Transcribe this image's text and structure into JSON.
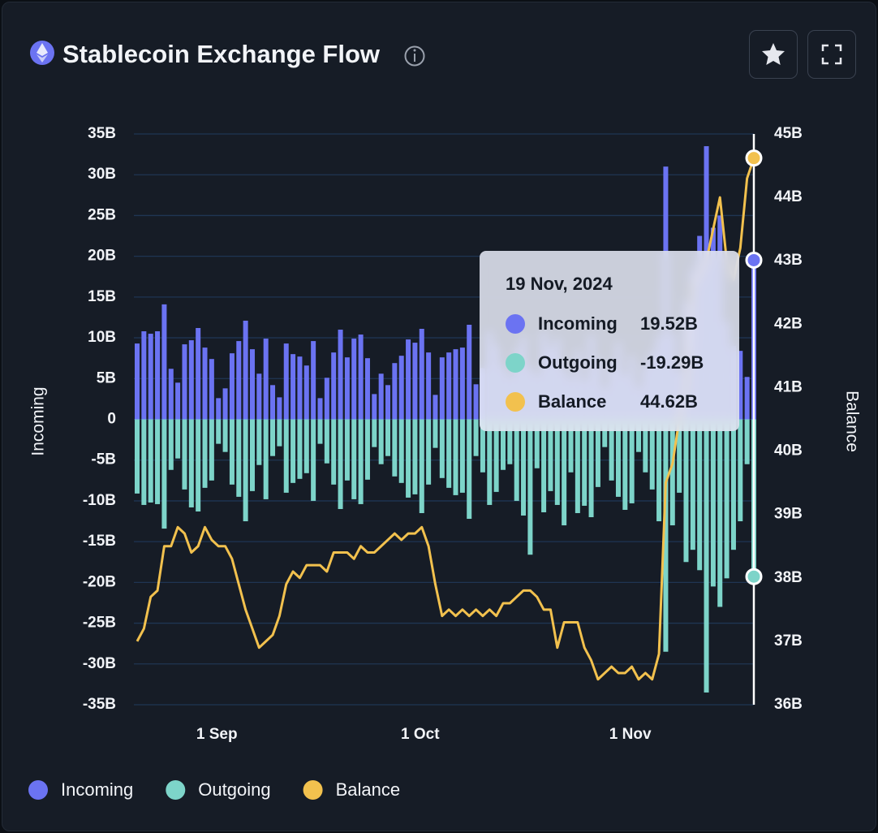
{
  "chart_data": {
    "type": "bar",
    "title": "Stablecoin Exchange Flow",
    "y_label": "Incoming",
    "y2_label": "Balance",
    "x": [
      "2024-08-20",
      "2024-08-21",
      "2024-08-22",
      "2024-08-23",
      "2024-08-24",
      "2024-08-25",
      "2024-08-26",
      "2024-08-27",
      "2024-08-28",
      "2024-08-29",
      "2024-08-30",
      "2024-08-31",
      "2024-09-01",
      "2024-09-02",
      "2024-09-03",
      "2024-09-04",
      "2024-09-05",
      "2024-09-06",
      "2024-09-07",
      "2024-09-08",
      "2024-09-09",
      "2024-09-10",
      "2024-09-11",
      "2024-09-12",
      "2024-09-13",
      "2024-09-14",
      "2024-09-15",
      "2024-09-16",
      "2024-09-17",
      "2024-09-18",
      "2024-09-19",
      "2024-09-20",
      "2024-09-21",
      "2024-09-22",
      "2024-09-23",
      "2024-09-24",
      "2024-09-25",
      "2024-09-26",
      "2024-09-27",
      "2024-09-28",
      "2024-09-29",
      "2024-09-30",
      "2024-10-01",
      "2024-10-02",
      "2024-10-03",
      "2024-10-04",
      "2024-10-05",
      "2024-10-06",
      "2024-10-07",
      "2024-10-08",
      "2024-10-09",
      "2024-10-10",
      "2024-10-11",
      "2024-10-12",
      "2024-10-13",
      "2024-10-14",
      "2024-10-15",
      "2024-10-16",
      "2024-10-17",
      "2024-10-18",
      "2024-10-19",
      "2024-10-20",
      "2024-10-21",
      "2024-10-22",
      "2024-10-23",
      "2024-10-24",
      "2024-10-25",
      "2024-10-26",
      "2024-10-27",
      "2024-10-28",
      "2024-10-29",
      "2024-10-30",
      "2024-10-31",
      "2024-11-01",
      "2024-11-02",
      "2024-11-03",
      "2024-11-04",
      "2024-11-05",
      "2024-11-06",
      "2024-11-07",
      "2024-11-08",
      "2024-11-09",
      "2024-11-10",
      "2024-11-11",
      "2024-11-12",
      "2024-11-13",
      "2024-11-14",
      "2024-11-15",
      "2024-11-16",
      "2024-11-17",
      "2024-11-18",
      "2024-11-19"
    ],
    "series": [
      {
        "name": "Incoming",
        "type": "bar",
        "color": "#6b73f2",
        "values": [
          9.3,
          10.8,
          10.5,
          10.8,
          14.1,
          6.2,
          4.5,
          9.2,
          9.7,
          11.2,
          8.8,
          7.4,
          2.6,
          3.8,
          8.1,
          9.6,
          12.1,
          8.6,
          5.6,
          9.9,
          4.2,
          2.7,
          9.3,
          8.0,
          7.7,
          6.6,
          9.6,
          2.6,
          5.1,
          8.2,
          11.0,
          7.6,
          9.9,
          10.4,
          7.5,
          3.1,
          5.6,
          4.2,
          6.9,
          7.8,
          9.8,
          9.4,
          11.1,
          8.2,
          3.0,
          7.6,
          8.2,
          8.6,
          8.8,
          11.6,
          4.3,
          6.3,
          10.8,
          9.1,
          6.6,
          5.3,
          8.6,
          10.2,
          6.4,
          5.5,
          10.7,
          8.8,
          9.9,
          6.2,
          5.0,
          8.5,
          4.8,
          10.3,
          7.3,
          3.9,
          6.8,
          9.4,
          5.5,
          7.8,
          4.0,
          6.6,
          8.3,
          10.2,
          31.0,
          10.5,
          6.0,
          14.5,
          18.5,
          22.5,
          33.5,
          23.5,
          25.0,
          12.0,
          9.0,
          8.4,
          5.2,
          19.52
        ]
      },
      {
        "name": "Outgoing",
        "type": "bar",
        "color": "#7dd4c9",
        "values": [
          -9.1,
          -10.5,
          -10.2,
          -10.4,
          -13.4,
          -6.2,
          -4.8,
          -8.6,
          -10.8,
          -11.3,
          -8.4,
          -7.5,
          -3.0,
          -4.0,
          -8.0,
          -9.5,
          -12.5,
          -8.8,
          -5.6,
          -9.8,
          -4.5,
          -3.3,
          -9.0,
          -7.8,
          -7.3,
          -6.6,
          -10.0,
          -3.0,
          -5.4,
          -8.0,
          -11.0,
          -7.5,
          -9.8,
          -10.4,
          -7.4,
          -3.4,
          -5.5,
          -4.5,
          -7.0,
          -7.8,
          -9.6,
          -9.2,
          -11.5,
          -8.0,
          -3.5,
          -7.2,
          -8.4,
          -9.3,
          -9.0,
          -12.2,
          -4.5,
          -6.5,
          -10.5,
          -8.9,
          -6.2,
          -5.5,
          -10.0,
          -11.8,
          -16.6,
          -6.0,
          -11.4,
          -8.8,
          -10.5,
          -13.0,
          -6.5,
          -11.5,
          -10.6,
          -12.0,
          -8.3,
          -3.4,
          -7.5,
          -9.5,
          -11.1,
          -10.3,
          -4.0,
          -6.5,
          -8.6,
          -12.5,
          -28.5,
          -13.0,
          -9.0,
          -17.5,
          -16.0,
          -18.5,
          -33.5,
          -20.5,
          -23.0,
          -19.5,
          -16.0,
          -12.5,
          -5.5,
          -19.29
        ]
      },
      {
        "name": "Balance",
        "type": "line",
        "axis": "y2",
        "color": "#f2c14e",
        "values": [
          37.0,
          37.2,
          37.7,
          37.8,
          38.5,
          38.5,
          38.8,
          38.7,
          38.4,
          38.5,
          38.8,
          38.6,
          38.5,
          38.5,
          38.3,
          37.9,
          37.5,
          37.2,
          36.9,
          37.0,
          37.1,
          37.4,
          37.9,
          38.1,
          38.0,
          38.2,
          38.2,
          38.2,
          38.1,
          38.4,
          38.4,
          38.4,
          38.3,
          38.5,
          38.4,
          38.4,
          38.5,
          38.6,
          38.7,
          38.6,
          38.7,
          38.7,
          38.8,
          38.5,
          37.9,
          37.4,
          37.5,
          37.4,
          37.5,
          37.4,
          37.5,
          37.4,
          37.5,
          37.4,
          37.6,
          37.6,
          37.7,
          37.8,
          37.8,
          37.7,
          37.5,
          37.5,
          36.9,
          37.3,
          37.3,
          37.3,
          36.9,
          36.7,
          36.4,
          36.5,
          36.6,
          36.5,
          36.5,
          36.6,
          36.4,
          36.5,
          36.4,
          36.8,
          39.5,
          39.8,
          40.5,
          41.0,
          42.6,
          42.8,
          43.0,
          43.5,
          44.0,
          43.0,
          42.7,
          43.2,
          44.3,
          44.62
        ]
      }
    ],
    "xticks": [
      {
        "value": "2024-09-01",
        "label": "1 Sep"
      },
      {
        "value": "2024-10-01",
        "label": "1 Oct"
      },
      {
        "value": "2024-11-01",
        "label": "1 Nov"
      }
    ],
    "ylim": [
      -35,
      35
    ],
    "yticks": [
      {
        "value": 35,
        "label": "35B"
      },
      {
        "value": 30,
        "label": "30B"
      },
      {
        "value": 25,
        "label": "25B"
      },
      {
        "value": 20,
        "label": "20B"
      },
      {
        "value": 15,
        "label": "15B"
      },
      {
        "value": 10,
        "label": "10B"
      },
      {
        "value": 5,
        "label": "5B"
      },
      0,
      {
        "value": -5,
        "label": "-5B"
      },
      {
        "value": -10,
        "label": "-10B"
      },
      {
        "value": -15,
        "label": "-15B"
      },
      {
        "value": -20,
        "label": "-20B"
      },
      {
        "value": -25,
        "label": "-25B"
      },
      {
        "value": -30,
        "label": "-30B"
      },
      {
        "value": -35,
        "label": "-35B"
      }
    ],
    "y2lim": [
      36,
      45
    ],
    "y2ticks": [
      {
        "value": 45,
        "label": "45B"
      },
      {
        "value": 44,
        "label": "44B"
      },
      {
        "value": 43,
        "label": "43B"
      },
      {
        "value": 42,
        "label": "42B"
      },
      {
        "value": 41,
        "label": "41B"
      },
      {
        "value": 40,
        "label": "40B"
      },
      {
        "value": 39,
        "label": "39B"
      },
      {
        "value": 38,
        "label": "38B"
      },
      {
        "value": 37,
        "label": "37B"
      },
      {
        "value": 36,
        "label": "36B"
      }
    ],
    "grid": true,
    "legend": "bottom",
    "tooltip": {
      "title": "19 Nov, 2024",
      "value_labels": [
        "19.52B",
        "-19.29B",
        "44.62B"
      ]
    }
  }
}
